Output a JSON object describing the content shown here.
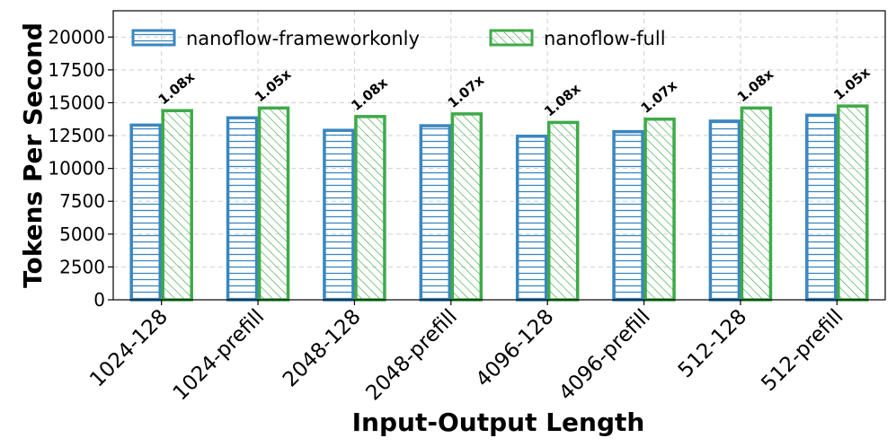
{
  "chart_data": {
    "type": "bar",
    "xlabel": "Input-Output Length",
    "ylabel": "Tokens Per Second",
    "categories": [
      "1024-128",
      "1024-prefill",
      "2048-128",
      "2048-prefill",
      "4096-128",
      "4096-prefill",
      "512-128",
      "512-prefill"
    ],
    "series": [
      {
        "name": "nanoflow-frameworkonly",
        "values": [
          13300,
          13850,
          12900,
          13250,
          12450,
          12800,
          13600,
          14050
        ],
        "color": "#3a86c0",
        "hatch": "horizontal"
      },
      {
        "name": "nanoflow-full",
        "values": [
          14400,
          14600,
          13950,
          14150,
          13500,
          13750,
          14600,
          14750
        ],
        "color": "#3eaa48",
        "hatch": "diagonal"
      }
    ],
    "annotations": [
      "1.08x",
      "1.05x",
      "1.08x",
      "1.07x",
      "1.08x",
      "1.07x",
      "1.08x",
      "1.05x"
    ],
    "yticks": [
      0,
      2500,
      5000,
      7500,
      10000,
      12500,
      15000,
      17500,
      20000
    ],
    "ylim": [
      0,
      22000
    ],
    "grid": true,
    "legend_position": "top"
  }
}
